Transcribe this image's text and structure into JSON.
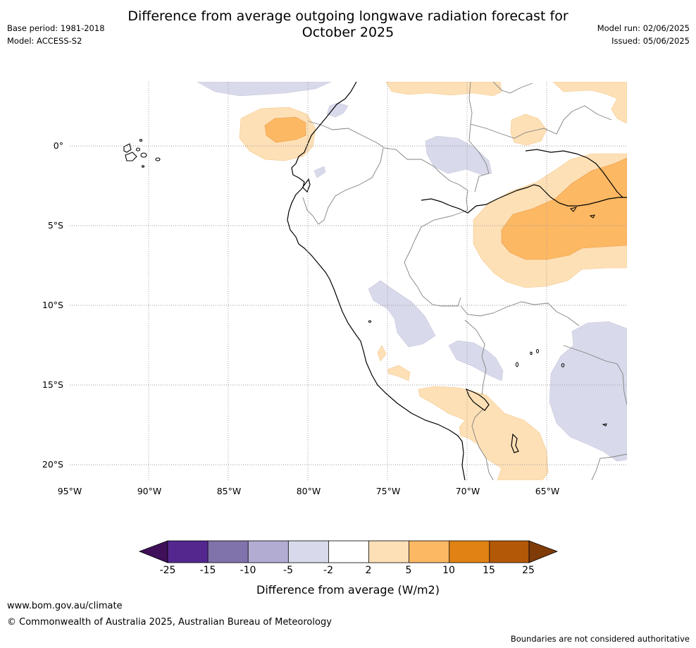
{
  "title_line1": "Difference from average outgoing longwave radiation forecast for",
  "title_line2": "October 2025",
  "meta": {
    "base_period": "Base period: 1981-2018",
    "model": "Model: ACCESS-S2",
    "model_run": "Model run: 02/06/2025",
    "issued": "Issued: 05/06/2025"
  },
  "map": {
    "region": "Western South America",
    "lat_labels": [
      "0°",
      "5°S",
      "10°S",
      "15°S",
      "20°S"
    ],
    "lon_labels": [
      "95°W",
      "90°W",
      "85°W",
      "80°W",
      "75°W",
      "70°W",
      "65°W"
    ],
    "gridlines": true
  },
  "colorbar": {
    "title": "Difference from average (W/m2)",
    "ticks": [
      "-25",
      "-15",
      "-10",
      "-5",
      "-2",
      "2",
      "5",
      "10",
      "15",
      "25"
    ],
    "colors": [
      "#3f0f5a",
      "#54278f",
      "#8073ac",
      "#b2abd2",
      "#d8daeb",
      "#ffffff",
      "#fee0b6",
      "#fdb863",
      "#e08214",
      "#b35806",
      "#7f3b08"
    ]
  },
  "footer": {
    "url": "www.bom.gov.au/climate",
    "copyright": "© Commonwealth of Australia 2025, Australian Bureau of Meteorology",
    "note": "Boundaries are not considered authoritative"
  }
}
